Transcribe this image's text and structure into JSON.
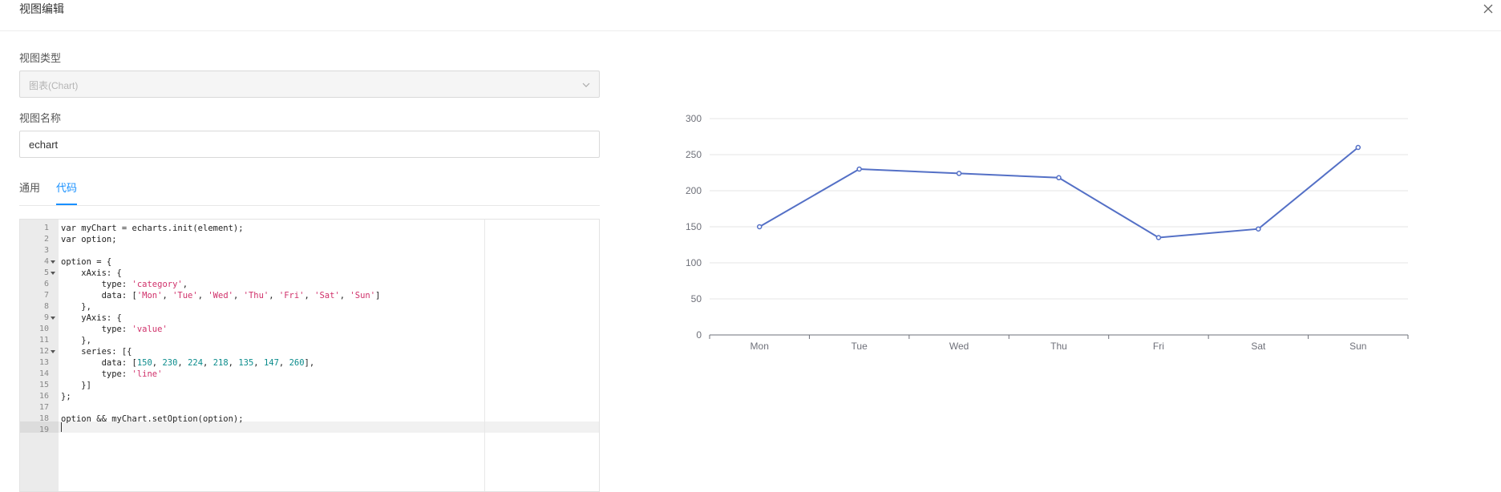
{
  "dialog": {
    "title": "视图编辑"
  },
  "form": {
    "type_label": "视图类型",
    "type_value": "图表(Chart)",
    "name_label": "视图名称",
    "name_value": "echart"
  },
  "tabs": [
    {
      "label": "通用",
      "active": false
    },
    {
      "label": "代码",
      "active": true
    }
  ],
  "editor": {
    "lines": [
      {
        "num": "1",
        "fold": false,
        "parts": [
          [
            "var myChart = echarts.init(element);",
            ""
          ]
        ]
      },
      {
        "num": "2",
        "fold": false,
        "parts": [
          [
            "var option;",
            ""
          ]
        ]
      },
      {
        "num": "3",
        "fold": false,
        "parts": []
      },
      {
        "num": "4",
        "fold": true,
        "parts": [
          [
            "option = {",
            ""
          ]
        ]
      },
      {
        "num": "5",
        "fold": true,
        "parts": [
          [
            "    xAxis: {",
            ""
          ]
        ]
      },
      {
        "num": "6",
        "fold": false,
        "parts": [
          [
            "        type: ",
            ""
          ],
          [
            "'category'",
            "s"
          ],
          [
            ",",
            ""
          ]
        ]
      },
      {
        "num": "7",
        "fold": false,
        "parts": [
          [
            "        data: [",
            ""
          ],
          [
            "'Mon'",
            "s"
          ],
          [
            ", ",
            ""
          ],
          [
            "'Tue'",
            "s"
          ],
          [
            ", ",
            ""
          ],
          [
            "'Wed'",
            "s"
          ],
          [
            ", ",
            ""
          ],
          [
            "'Thu'",
            "s"
          ],
          [
            ", ",
            ""
          ],
          [
            "'Fri'",
            "s"
          ],
          [
            ", ",
            ""
          ],
          [
            "'Sat'",
            "s"
          ],
          [
            ", ",
            ""
          ],
          [
            "'Sun'",
            "s"
          ],
          [
            "]",
            ""
          ]
        ]
      },
      {
        "num": "8",
        "fold": false,
        "parts": [
          [
            "    },",
            ""
          ]
        ]
      },
      {
        "num": "9",
        "fold": true,
        "parts": [
          [
            "    yAxis: {",
            ""
          ]
        ]
      },
      {
        "num": "10",
        "fold": false,
        "parts": [
          [
            "        type: ",
            ""
          ],
          [
            "'value'",
            "s"
          ]
        ]
      },
      {
        "num": "11",
        "fold": false,
        "parts": [
          [
            "    },",
            ""
          ]
        ]
      },
      {
        "num": "12",
        "fold": true,
        "parts": [
          [
            "    series: [{",
            ""
          ]
        ]
      },
      {
        "num": "13",
        "fold": false,
        "parts": [
          [
            "        data: [",
            ""
          ],
          [
            "150",
            "n"
          ],
          [
            ", ",
            ""
          ],
          [
            "230",
            "n"
          ],
          [
            ", ",
            ""
          ],
          [
            "224",
            "n"
          ],
          [
            ", ",
            ""
          ],
          [
            "218",
            "n"
          ],
          [
            ", ",
            ""
          ],
          [
            "135",
            "n"
          ],
          [
            ", ",
            ""
          ],
          [
            "147",
            "n"
          ],
          [
            ", ",
            ""
          ],
          [
            "260",
            "n"
          ],
          [
            "],",
            ""
          ]
        ]
      },
      {
        "num": "14",
        "fold": false,
        "parts": [
          [
            "        type: ",
            ""
          ],
          [
            "'line'",
            "s"
          ]
        ]
      },
      {
        "num": "15",
        "fold": false,
        "parts": [
          [
            "    }]",
            ""
          ]
        ]
      },
      {
        "num": "16",
        "fold": false,
        "parts": [
          [
            "};",
            ""
          ]
        ]
      },
      {
        "num": "17",
        "fold": false,
        "parts": []
      },
      {
        "num": "18",
        "fold": false,
        "parts": [
          [
            "option && myChart.setOption(option);",
            ""
          ]
        ]
      },
      {
        "num": "19",
        "fold": false,
        "parts": []
      }
    ]
  },
  "chart_data": {
    "type": "line",
    "categories": [
      "Mon",
      "Tue",
      "Wed",
      "Thu",
      "Fri",
      "Sat",
      "Sun"
    ],
    "series": [
      {
        "values": [
          150,
          230,
          224,
          218,
          135,
          147,
          260
        ],
        "color": "#5470c6"
      }
    ],
    "ylim": [
      0,
      300
    ],
    "yticks": [
      "0",
      "50",
      "100",
      "150",
      "200",
      "250",
      "300"
    ],
    "grid": true
  }
}
